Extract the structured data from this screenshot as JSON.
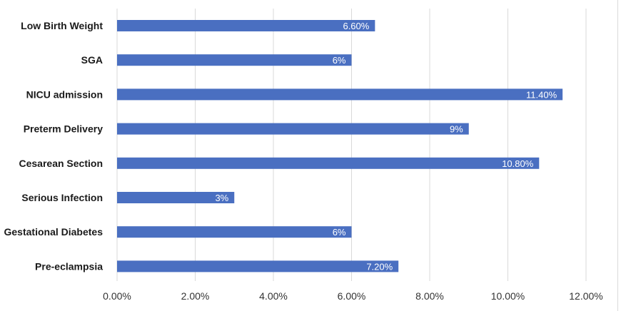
{
  "chart_data": {
    "type": "bar",
    "orientation": "horizontal",
    "title": "",
    "xlabel": "",
    "ylabel": "",
    "categories": [
      "Low Birth Weight",
      "SGA",
      "NICU admission",
      "Preterm Delivery",
      "Cesarean Section",
      "Serious Infection",
      "Gestational Diabetes",
      "Pre-eclampsia"
    ],
    "values": [
      6.6,
      6,
      11.4,
      9,
      10.8,
      3,
      6,
      7.2
    ],
    "data_labels": [
      "6.60%",
      "6%",
      "11.40%",
      "9%",
      "10.80%",
      "3%",
      "6%",
      "7.20%"
    ],
    "xlim": [
      0,
      12
    ],
    "x_ticks": [
      0,
      2,
      4,
      6,
      8,
      10,
      12
    ],
    "x_tick_labels": [
      "0.00%",
      "2.00%",
      "4.00%",
      "6.00%",
      "8.00%",
      "10.00%",
      "12.00%"
    ],
    "grid": "vertical",
    "legend": "none",
    "bar_color": "#4a6fc1"
  }
}
